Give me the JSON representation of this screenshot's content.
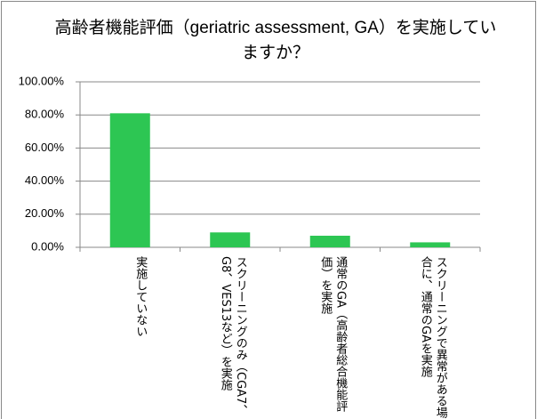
{
  "chart_data": {
    "type": "bar",
    "title": "高齢者機能評価（geriatric assessment, GA）を実施していますか？",
    "categories": [
      "実施していない",
      "スクリーニングのみ（CGA7、G8、VES13など）を実施",
      "通常のGA（高齢者総合機能評価）を実施",
      "スクリーニングで異常がある場合に、通常のGAを実施"
    ],
    "values": [
      81,
      9,
      7,
      3
    ],
    "color": "#2dc653",
    "ylim": [
      0,
      100
    ],
    "yticks": [
      {
        "value": 0,
        "label": "0.00%"
      },
      {
        "value": 20,
        "label": "20.00%"
      },
      {
        "value": 40,
        "label": "40.00%"
      },
      {
        "value": 60,
        "label": "60.00%"
      },
      {
        "value": 80,
        "label": "80.00%"
      },
      {
        "value": 100,
        "label": "100.00%"
      }
    ],
    "grid": true
  }
}
